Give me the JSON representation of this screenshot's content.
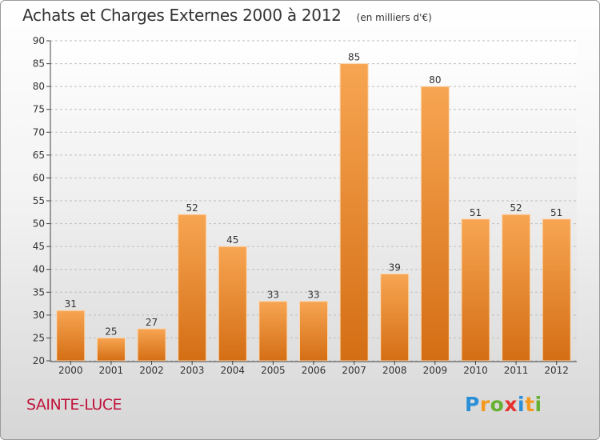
{
  "header": {
    "title": "Achats et Charges Externes 2000 à 2012",
    "subtitle": "(en milliers d'€)"
  },
  "footer": {
    "city": "SAINTE-LUCE",
    "logo_letters": [
      "P",
      "r",
      "o",
      "x",
      "i",
      "t",
      "i"
    ],
    "logo_colors": [
      "#2a8fd6",
      "#f39a1e",
      "#66b032",
      "#e5342f",
      "#2a8fd6",
      "#f39a1e",
      "#66b032"
    ]
  },
  "chart_data": {
    "type": "bar",
    "categories": [
      "2000",
      "2001",
      "2002",
      "2003",
      "2004",
      "2005",
      "2006",
      "2007",
      "2008",
      "2009",
      "2010",
      "2011",
      "2012"
    ],
    "values": [
      31,
      25,
      27,
      52,
      45,
      33,
      33,
      85,
      39,
      80,
      51,
      52,
      51
    ],
    "data_labels": [
      "31",
      "25",
      "27",
      "52",
      "45",
      "33",
      "33",
      "85",
      "39",
      "80",
      "51",
      "52",
      "51"
    ],
    "yticks": [
      "20",
      "25",
      "30",
      "35",
      "40",
      "45",
      "50",
      "55",
      "60",
      "65",
      "70",
      "75",
      "80",
      "85",
      "90"
    ],
    "ylim": [
      20,
      90
    ],
    "grid": true,
    "bar_color_light": "#f7a552",
    "bar_color_dark": "#d46e14"
  }
}
